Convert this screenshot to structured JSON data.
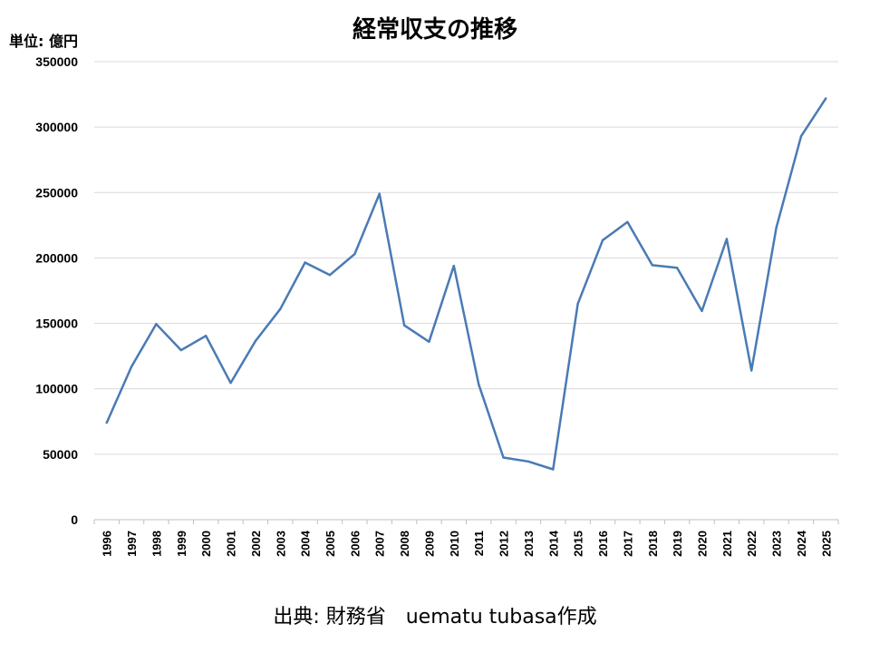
{
  "chart_data": {
    "type": "line",
    "title": "経常収支の推移",
    "unit_label": "単位: 億円",
    "source": "出典: 財務省　uematu tubasa作成",
    "ylim": [
      0,
      350000
    ],
    "yticks": [
      0,
      50000,
      100000,
      150000,
      200000,
      250000,
      300000,
      350000
    ],
    "grid": true,
    "legend": "none",
    "line_color": "#4a7ab5",
    "categories": [
      "1996",
      "1997",
      "1998",
      "1999",
      "2000",
      "2001",
      "2002",
      "2003",
      "2004",
      "2005",
      "2006",
      "2007",
      "2008",
      "2009",
      "2010",
      "2011",
      "2012",
      "2013",
      "2014",
      "2015",
      "2016",
      "2017",
      "2018",
      "2019",
      "2020",
      "2021",
      "2022",
      "2023",
      "2024",
      "2025"
    ],
    "series": [
      {
        "values": [
          74000,
          117000,
          149500,
          129500,
          140500,
          104500,
          136500,
          161000,
          196500,
          187000,
          203000,
          249000,
          148500,
          136000,
          194000,
          103500,
          47500,
          44500,
          38500,
          165000,
          213500,
          227500,
          194500,
          192500,
          159500,
          214500,
          114000,
          223000,
          293000,
          322000
        ]
      }
    ]
  }
}
